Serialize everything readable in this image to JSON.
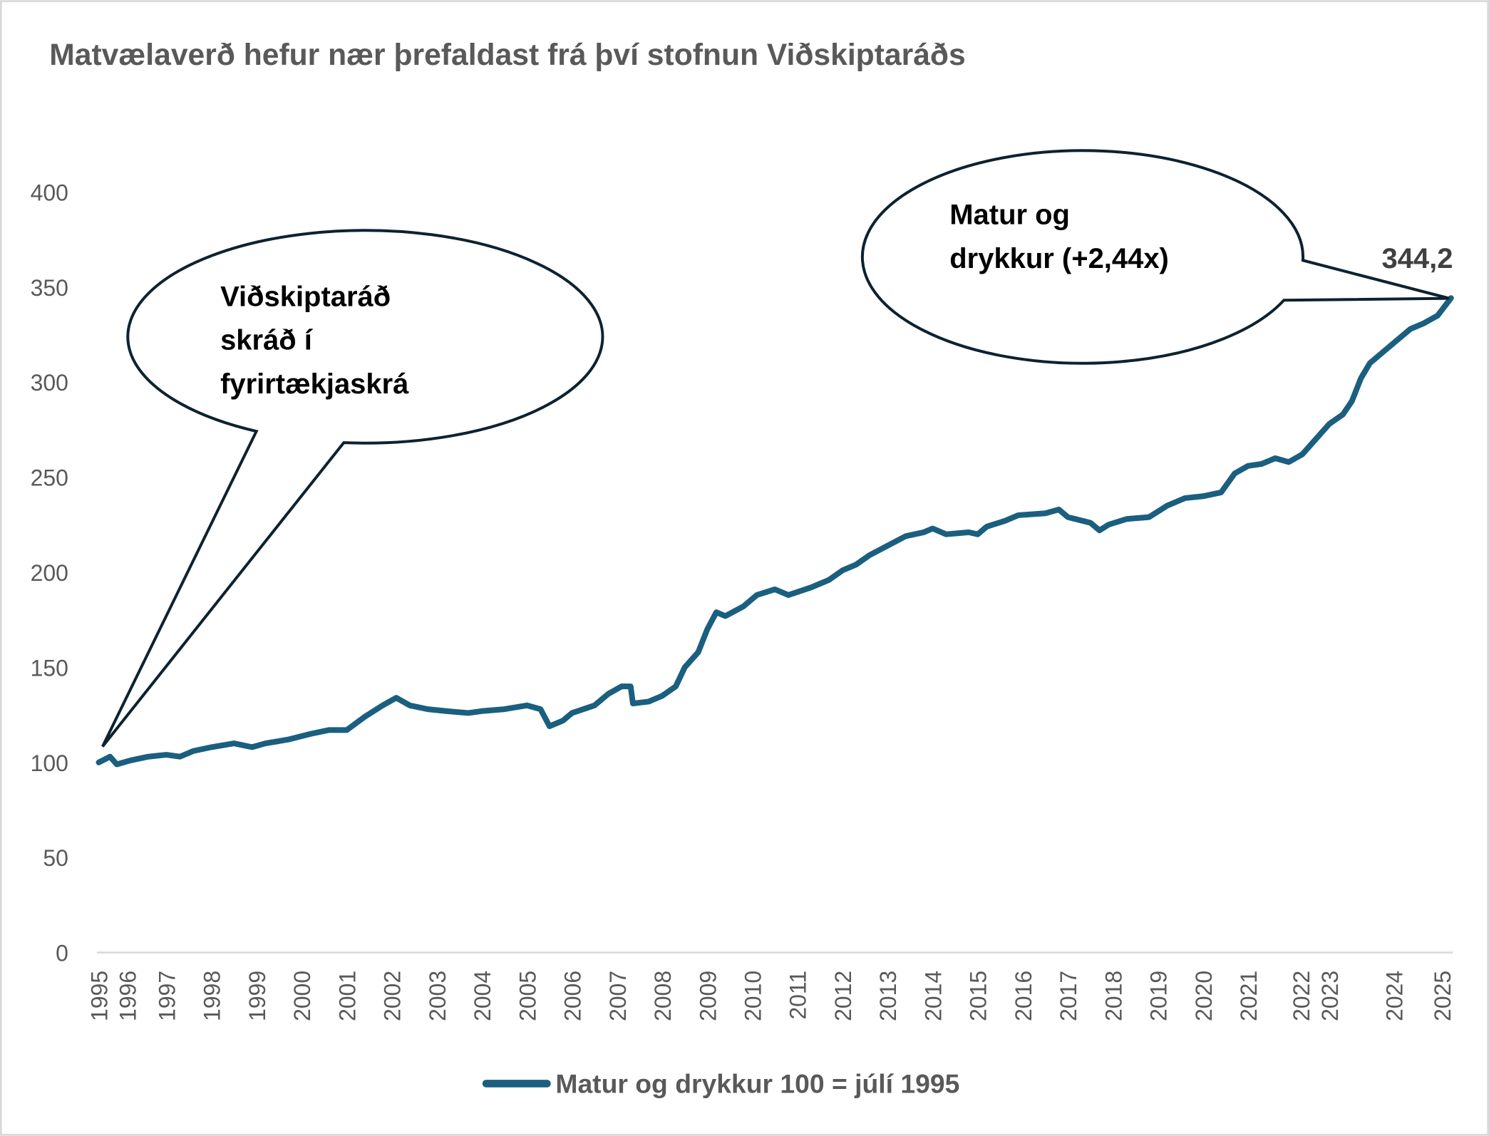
{
  "chart_data": {
    "type": "line",
    "title": "Matvælaverð hefur nær þrefaldast frá því stofnun Viðskiptaráðs",
    "xlabel": "",
    "ylabel": "",
    "ylim": [
      0,
      400
    ],
    "y_ticks": [
      0,
      50,
      100,
      150,
      200,
      250,
      300,
      350,
      400
    ],
    "xlim": [
      1995.5,
      2025.5
    ],
    "x_ticks": [
      {
        "label": "1995",
        "x": 1995.5
      },
      {
        "label": "1996",
        "x": 1995.85
      },
      {
        "label": "1997",
        "x": 1997
      },
      {
        "label": "1998",
        "x": 1998
      },
      {
        "label": "1999",
        "x": 1999
      },
      {
        "label": "2000",
        "x": 2000
      },
      {
        "label": "2001",
        "x": 2001
      },
      {
        "label": "2002",
        "x": 2002
      },
      {
        "label": "2003",
        "x": 2003
      },
      {
        "label": "2004",
        "x": 2004
      },
      {
        "label": "2005",
        "x": 2005
      },
      {
        "label": "2006",
        "x": 2006
      },
      {
        "label": "2007",
        "x": 2007
      },
      {
        "label": "2008",
        "x": 2008
      },
      {
        "label": "2009",
        "x": 2009
      },
      {
        "label": "2010",
        "x": 2010
      },
      {
        "label": "2011",
        "x": 2011
      },
      {
        "label": "2012",
        "x": 2012
      },
      {
        "label": "2013",
        "x": 2013
      },
      {
        "label": "2014",
        "x": 2014
      },
      {
        "label": "2015",
        "x": 2015
      },
      {
        "label": "2016",
        "x": 2016
      },
      {
        "label": "2017",
        "x": 2017
      },
      {
        "label": "2018",
        "x": 2018
      },
      {
        "label": "2019",
        "x": 2019
      },
      {
        "label": "2020",
        "x": 2020
      },
      {
        "label": "2021",
        "x": 2021
      },
      {
        "label": "2022",
        "x": 2022.17
      },
      {
        "label": "2023",
        "x": 2022.76
      },
      {
        "label": "2024",
        "x": 2024.23
      },
      {
        "label": "2025",
        "x": 2025.3
      }
    ],
    "grid": false,
    "legend_position": "bottom",
    "series": [
      {
        "name": "Matur og drykkur 100 = júlí 1995",
        "color": "#1a5f7f",
        "points": [
          [
            1995.5,
            100
          ],
          [
            1995.75,
            103
          ],
          [
            1995.9,
            99
          ],
          [
            1996.2,
            101
          ],
          [
            1996.6,
            103
          ],
          [
            1997.0,
            104
          ],
          [
            1997.3,
            103
          ],
          [
            1997.6,
            106
          ],
          [
            1998.0,
            108
          ],
          [
            1998.5,
            110
          ],
          [
            1998.9,
            108
          ],
          [
            1999.2,
            110
          ],
          [
            1999.7,
            112
          ],
          [
            2000.2,
            115
          ],
          [
            2000.6,
            117
          ],
          [
            2001.0,
            117
          ],
          [
            2001.4,
            124
          ],
          [
            2001.8,
            130
          ],
          [
            2002.1,
            134
          ],
          [
            2002.4,
            130
          ],
          [
            2002.8,
            128
          ],
          [
            2003.2,
            127
          ],
          [
            2003.7,
            126
          ],
          [
            2004.0,
            127
          ],
          [
            2004.5,
            128
          ],
          [
            2005.0,
            130
          ],
          [
            2005.3,
            128
          ],
          [
            2005.5,
            119
          ],
          [
            2005.8,
            122
          ],
          [
            2006.0,
            126
          ],
          [
            2006.5,
            130
          ],
          [
            2006.8,
            136
          ],
          [
            2007.1,
            140
          ],
          [
            2007.3,
            140
          ],
          [
            2007.35,
            131
          ],
          [
            2007.7,
            132
          ],
          [
            2008.0,
            135
          ],
          [
            2008.3,
            140
          ],
          [
            2008.5,
            150
          ],
          [
            2008.8,
            158
          ],
          [
            2009.0,
            170
          ],
          [
            2009.2,
            179
          ],
          [
            2009.4,
            177
          ],
          [
            2009.8,
            182
          ],
          [
            2010.1,
            188
          ],
          [
            2010.5,
            191
          ],
          [
            2010.8,
            188
          ],
          [
            2011.3,
            192
          ],
          [
            2011.7,
            196
          ],
          [
            2012.0,
            201
          ],
          [
            2012.3,
            204
          ],
          [
            2012.6,
            209
          ],
          [
            2013.0,
            214
          ],
          [
            2013.4,
            219
          ],
          [
            2013.8,
            221
          ],
          [
            2014.0,
            223
          ],
          [
            2014.3,
            220
          ],
          [
            2014.8,
            221
          ],
          [
            2015.0,
            220
          ],
          [
            2015.2,
            224
          ],
          [
            2015.6,
            227
          ],
          [
            2015.9,
            230
          ],
          [
            2016.5,
            231
          ],
          [
            2016.8,
            233
          ],
          [
            2017.0,
            229
          ],
          [
            2017.5,
            226
          ],
          [
            2017.7,
            222
          ],
          [
            2017.9,
            225
          ],
          [
            2018.3,
            228
          ],
          [
            2018.8,
            229
          ],
          [
            2019.2,
            235
          ],
          [
            2019.6,
            239
          ],
          [
            2020.0,
            240
          ],
          [
            2020.4,
            242
          ],
          [
            2020.7,
            252
          ],
          [
            2021.0,
            256
          ],
          [
            2021.3,
            257
          ],
          [
            2021.6,
            260
          ],
          [
            2021.9,
            258
          ],
          [
            2022.2,
            262
          ],
          [
            2022.5,
            270
          ],
          [
            2022.8,
            278
          ],
          [
            2023.1,
            283
          ],
          [
            2023.3,
            290
          ],
          [
            2023.5,
            302
          ],
          [
            2023.7,
            310
          ],
          [
            2024.0,
            316
          ],
          [
            2024.3,
            322
          ],
          [
            2024.6,
            328
          ],
          [
            2024.9,
            331
          ],
          [
            2025.2,
            335
          ],
          [
            2025.5,
            344.2
          ]
        ]
      }
    ],
    "annotations": {
      "end_value_label": "344,2",
      "callout_left_lines": [
        "Viðskiptaráð",
        "skráð í",
        "fyrirtækjaskrá"
      ],
      "callout_right_lines": [
        "Matur og",
        "drykkur (+2,44x)"
      ]
    }
  }
}
